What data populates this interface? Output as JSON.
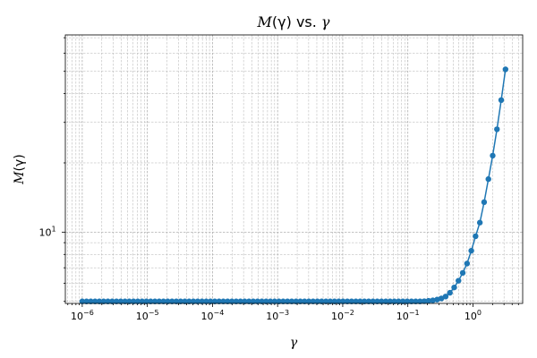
{
  "chart_data": {
    "type": "line",
    "title": {
      "pre": "M",
      "mid": "(γ) vs. ",
      "post": "γ"
    },
    "xlabel": "γ",
    "ylabel": {
      "main": "M",
      "rest": "(γ)"
    },
    "xscale": "log",
    "yscale": "log",
    "xlim": [
      5.5e-07,
      5.8
    ],
    "ylim": [
      4.9,
      72
    ],
    "grid": true,
    "x_major_ticks": [
      {
        "base": "10",
        "exp": "−6",
        "value": 1e-06
      },
      {
        "base": "10",
        "exp": "−5",
        "value": 1e-05
      },
      {
        "base": "10",
        "exp": "−4",
        "value": 0.0001
      },
      {
        "base": "10",
        "exp": "−3",
        "value": 0.001
      },
      {
        "base": "10",
        "exp": "−2",
        "value": 0.01
      },
      {
        "base": "10",
        "exp": "−1",
        "value": 0.1
      },
      {
        "base": "10",
        "exp": "0",
        "value": 1
      }
    ],
    "y_major_ticks": [
      {
        "base": "10",
        "exp": "1",
        "value": 10
      }
    ],
    "series": {
      "color": "#1f77b4",
      "marker": "circle",
      "gamma_min": 1e-06,
      "gamma_max": 3.16,
      "count": 100,
      "flat_value": 5.0,
      "y": [
        5.0,
        5.0,
        5.0,
        5.0,
        5.0,
        5.0,
        5.0,
        5.0,
        5.0,
        5.0,
        5.0,
        5.0,
        5.0,
        5.0,
        5.0,
        5.0,
        5.0,
        5.0,
        5.0,
        5.0,
        5.0,
        5.0,
        5.0,
        5.0,
        5.0,
        5.0,
        5.0,
        5.0,
        5.0,
        5.0,
        5.0,
        5.0,
        5.0,
        5.0,
        5.0,
        5.0,
        5.0,
        5.0,
        5.0,
        5.0,
        5.0,
        5.0,
        5.0,
        5.0,
        5.0,
        5.0,
        5.0,
        5.0,
        5.0,
        5.0,
        5.0,
        5.0,
        5.0,
        5.0,
        5.0,
        5.0,
        5.0,
        5.0,
        5.0,
        5.0,
        5.0,
        5.0,
        5.0,
        5.0,
        5.0,
        5.0,
        5.0,
        5.0,
        5.0,
        5.0,
        5.0,
        5.0,
        5.0,
        5.0,
        5.0,
        5.0,
        5.0,
        5.0,
        5.0,
        5.0,
        5.01,
        5.03,
        5.05,
        5.09,
        5.15,
        5.25,
        5.45,
        5.75,
        6.15,
        6.65,
        7.3,
        8.3,
        9.6,
        11.0,
        13.5,
        17.0,
        21.5,
        28.0,
        37.5,
        51.0
      ]
    }
  }
}
